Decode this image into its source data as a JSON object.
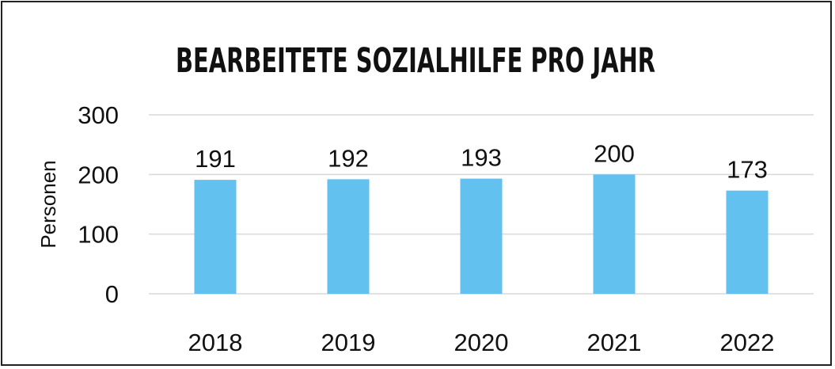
{
  "colors": {
    "bar": "#62c1ef",
    "grid": "#d9d9d9",
    "text": "#111111",
    "border": "#222222"
  },
  "chart_data": {
    "type": "bar",
    "title": "BEARBEITETE SOZIALHILFE PRO JAHR",
    "xlabel": "",
    "ylabel": "Personen",
    "categories": [
      "2018",
      "2019",
      "2020",
      "2021",
      "2022"
    ],
    "values": [
      191,
      192,
      193,
      200,
      173
    ],
    "data_labels": [
      "191",
      "192",
      "193",
      "200",
      "173"
    ],
    "ylim": [
      0,
      300
    ],
    "yticks": [
      0,
      100,
      200,
      300
    ],
    "ytick_labels": [
      "0",
      "100",
      "200",
      "300"
    ],
    "grid": true,
    "legend": "none"
  }
}
